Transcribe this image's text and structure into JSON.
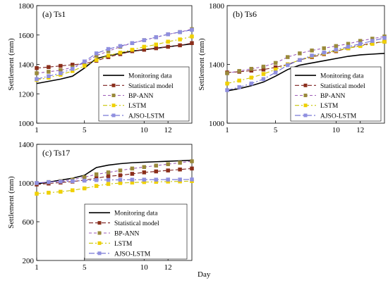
{
  "figure": {
    "xlabel": "Day"
  },
  "chart_data": [
    {
      "type": "line",
      "title": "(a) Ts1",
      "xlabel": "",
      "ylabel": "Settlement (mm)",
      "ylim": [
        1000,
        1800
      ],
      "yticks": [
        1000,
        1200,
        1400,
        1600,
        1800
      ],
      "xlim": [
        1,
        14
      ],
      "xticks": [
        1,
        5,
        10,
        12
      ],
      "grid": false,
      "legend": "bottom-right",
      "x": [
        1,
        2,
        3,
        4,
        5,
        6,
        7,
        8,
        9,
        10,
        11,
        12,
        13,
        14
      ],
      "series": [
        {
          "name": "Monitoring data",
          "values": [
            1270,
            1285,
            1300,
            1320,
            1375,
            1440,
            1460,
            1475,
            1490,
            1500,
            1510,
            1520,
            1530,
            1540
          ]
        },
        {
          "name": "Statistical model",
          "values": [
            1375,
            1382,
            1390,
            1398,
            1405,
            1425,
            1450,
            1470,
            1490,
            1500,
            1510,
            1520,
            1530,
            1545
          ]
        },
        {
          "name": "BP-ANN",
          "values": [
            1340,
            1350,
            1360,
            1380,
            1410,
            1460,
            1490,
            1520,
            1545,
            1565,
            1585,
            1605,
            1620,
            1640
          ]
        },
        {
          "name": "LSTM",
          "values": [
            1295,
            1310,
            1330,
            1355,
            1390,
            1430,
            1460,
            1480,
            1500,
            1520,
            1535,
            1555,
            1570,
            1590
          ]
        },
        {
          "name": "AJSO-LSTM",
          "values": [
            1300,
            1320,
            1340,
            1370,
            1420,
            1475,
            1505,
            1525,
            1545,
            1565,
            1585,
            1605,
            1620,
            1635
          ]
        }
      ]
    },
    {
      "type": "line",
      "title": "(b) Ts6",
      "xlabel": "",
      "ylabel": "Settlement (mm)",
      "ylim": [
        1000,
        1800
      ],
      "yticks": [
        1000,
        1400,
        1800
      ],
      "xlim": [
        1,
        14
      ],
      "xticks": [
        1,
        5,
        10,
        12
      ],
      "grid": false,
      "legend": "bottom-right",
      "x": [
        1,
        2,
        3,
        4,
        5,
        6,
        7,
        8,
        9,
        10,
        11,
        12,
        13,
        14
      ],
      "series": [
        {
          "name": "Monitoring data",
          "values": [
            1220,
            1235,
            1255,
            1280,
            1320,
            1365,
            1395,
            1410,
            1425,
            1440,
            1455,
            1465,
            1470,
            1475
          ]
        },
        {
          "name": "Statistical model",
          "values": [
            1345,
            1350,
            1358,
            1365,
            1380,
            1400,
            1430,
            1450,
            1470,
            1490,
            1510,
            1530,
            1545,
            1555
          ]
        },
        {
          "name": "BP-ANN",
          "values": [
            1340,
            1355,
            1370,
            1385,
            1410,
            1450,
            1475,
            1495,
            1510,
            1525,
            1540,
            1560,
            1575,
            1590
          ]
        },
        {
          "name": "LSTM",
          "values": [
            1270,
            1290,
            1310,
            1335,
            1365,
            1400,
            1430,
            1455,
            1475,
            1495,
            1510,
            1525,
            1540,
            1555
          ]
        },
        {
          "name": "AJSO-LSTM",
          "values": [
            1225,
            1245,
            1270,
            1300,
            1345,
            1395,
            1430,
            1460,
            1480,
            1500,
            1520,
            1540,
            1560,
            1580
          ]
        }
      ]
    },
    {
      "type": "line",
      "title": "(c) Ts17",
      "xlabel": "",
      "ylabel": "Settlement (mm)",
      "ylim": [
        200,
        1400
      ],
      "yticks": [
        200,
        600,
        1000,
        1400
      ],
      "xlim": [
        1,
        14
      ],
      "xticks": [
        1,
        5,
        10,
        12
      ],
      "grid": false,
      "legend": "bottom-right",
      "x": [
        1,
        2,
        3,
        4,
        5,
        6,
        7,
        8,
        9,
        10,
        11,
        12,
        13,
        14
      ],
      "series": [
        {
          "name": "Monitoring data",
          "values": [
            990,
            1010,
            1030,
            1050,
            1080,
            1160,
            1185,
            1200,
            1210,
            1215,
            1220,
            1225,
            1230,
            1235
          ]
        },
        {
          "name": "Statistical model",
          "values": [
            985,
            995,
            1005,
            1015,
            1030,
            1050,
            1070,
            1080,
            1095,
            1110,
            1120,
            1130,
            1140,
            1150
          ]
        },
        {
          "name": "BP-ANN",
          "values": [
            1000,
            1010,
            1020,
            1035,
            1060,
            1090,
            1110,
            1130,
            1150,
            1165,
            1180,
            1195,
            1210,
            1225
          ]
        },
        {
          "name": "LSTM",
          "values": [
            890,
            900,
            910,
            925,
            945,
            970,
            990,
            1000,
            1005,
            1010,
            1012,
            1015,
            1017,
            1020
          ]
        },
        {
          "name": "AJSO-LSTM",
          "values": [
            1000,
            1010,
            1015,
            1020,
            1025,
            1030,
            1032,
            1033,
            1034,
            1035,
            1035,
            1036,
            1036,
            1037
          ]
        }
      ]
    }
  ],
  "styles": {
    "Monitoring data": {
      "color": "#000000",
      "dash": "",
      "marker": "none",
      "markerColor": "#000000"
    },
    "Statistical model": {
      "color": "#7a1f1f",
      "dash": "6 3",
      "marker": "square",
      "markerColor": "#8b2e1a"
    },
    "BP-ANN": {
      "color": "#9b59b6",
      "dash": "4 3",
      "marker": "square",
      "markerColor": "#9a8a3a"
    },
    "LSTM": {
      "color": "#c8c400",
      "dash": "6 3 2 3",
      "marker": "square",
      "markerColor": "#f0d000"
    },
    "AJSO-LSTM": {
      "color": "#6a6ad0",
      "dash": "8 3 2 3",
      "marker": "square",
      "markerColor": "#8f8fe0"
    }
  }
}
